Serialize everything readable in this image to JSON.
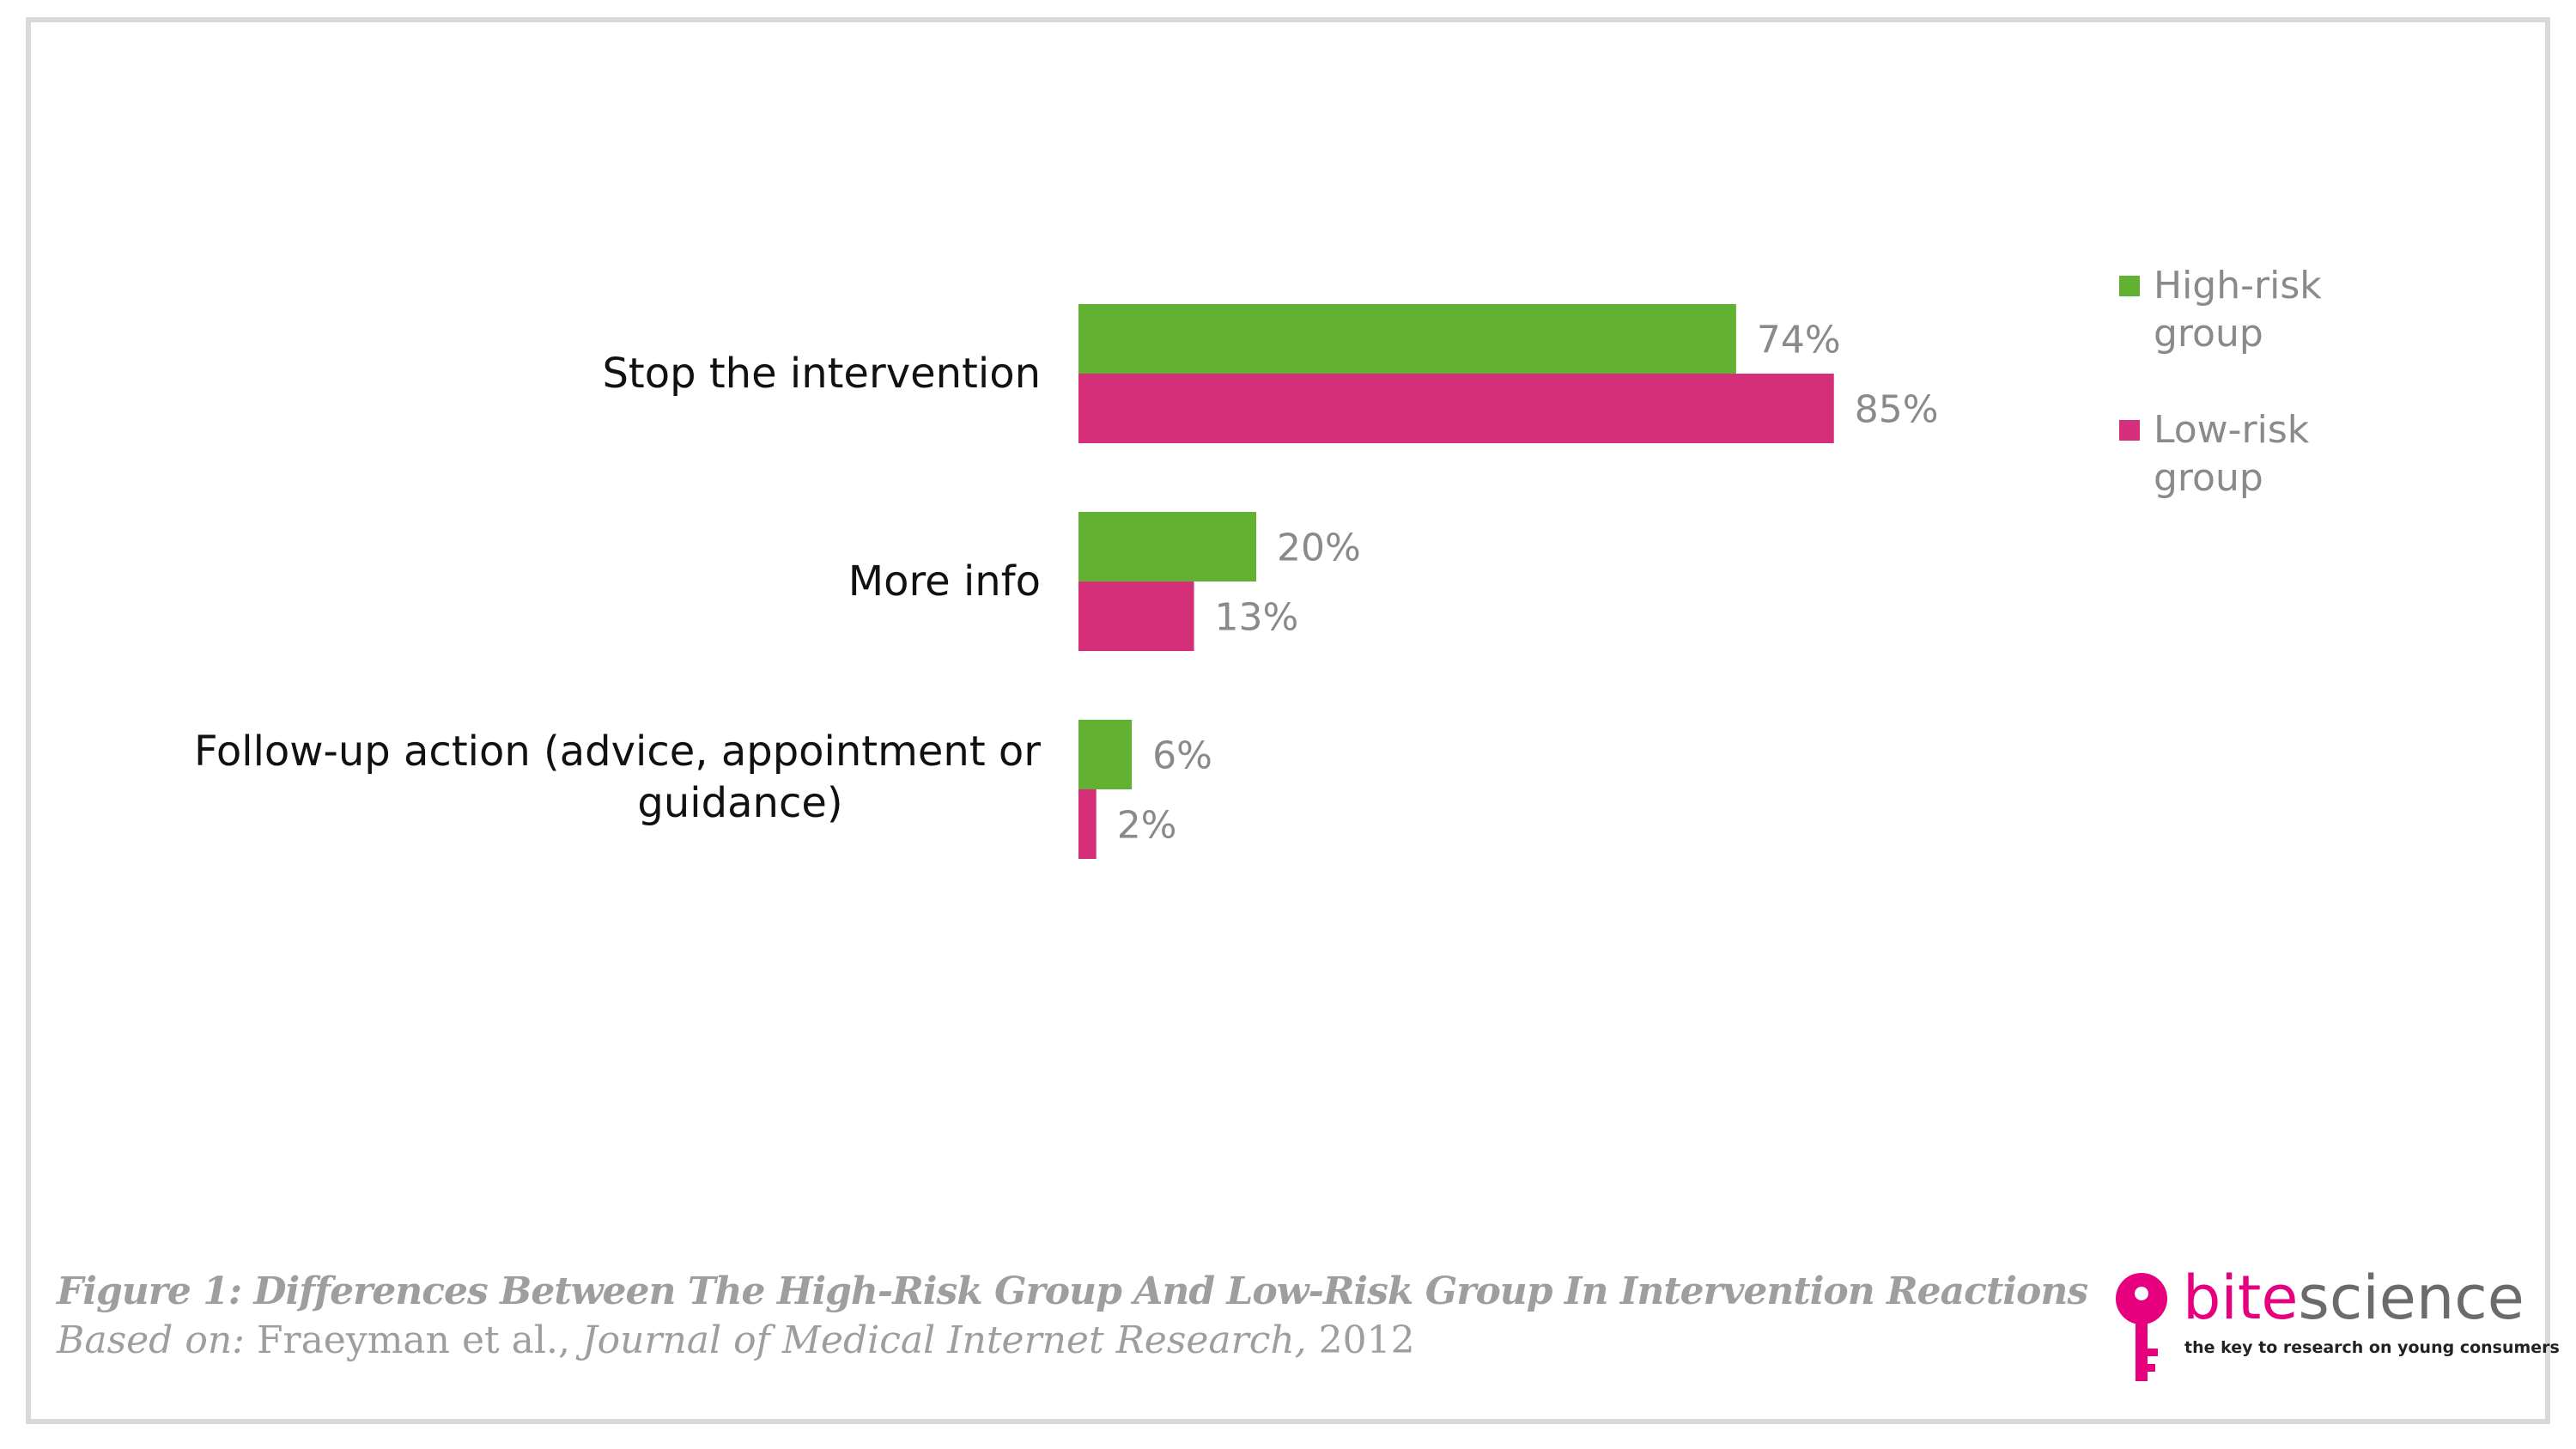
{
  "chart_data": {
    "type": "bar",
    "orientation": "horizontal",
    "categories": [
      "Stop the intervention",
      "More info",
      "Follow-up action (advice, appointment or guidance)"
    ],
    "category_lines": [
      [
        "Stop the intervention"
      ],
      [
        "More info"
      ],
      [
        "Follow-up action (advice, appointment or",
        "guidance)"
      ]
    ],
    "series": [
      {
        "name": "High-risk group",
        "legend_lines": [
          "High-risk",
          "group"
        ],
        "color": "#63b132",
        "values": [
          74,
          20,
          6
        ],
        "labels": [
          "74%",
          "20%",
          "6%"
        ]
      },
      {
        "name": "Low-risk group",
        "legend_lines": [
          "Low-risk",
          "group"
        ],
        "color": "#d62f7a",
        "values": [
          85,
          13,
          2
        ],
        "labels": [
          "85%",
          "13%",
          "2%"
        ]
      }
    ],
    "unit": "%",
    "xlim": [
      0,
      100
    ],
    "grid": false,
    "legend_position": "top-right"
  },
  "caption": {
    "title": "Figure 1: Differences Between The High-Risk Group And Low-Risk Group In Intervention Reactions",
    "based_on": "Based on:",
    "authors": "Fraeyman et al.,",
    "journal": "Journal of Medical Internet Research,",
    "year": "2012"
  },
  "brand": {
    "bite": "bite",
    "science": "science",
    "tagline": "the key to research on young consumers",
    "icon": "key-icon",
    "color": "#e6007e"
  }
}
